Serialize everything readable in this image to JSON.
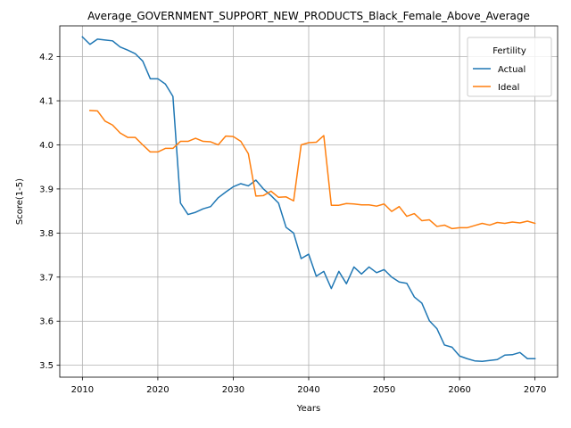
{
  "chart_data": {
    "type": "line",
    "title": "Average_GOVERNMENT_SUPPORT_NEW_PRODUCTS_Black_Female_Above_Average",
    "xlabel": "Years",
    "ylabel": "Score(1-5)",
    "xlim": [
      2007,
      2073
    ],
    "ylim": [
      3.473,
      4.27
    ],
    "xticks": [
      2010,
      2020,
      2030,
      2040,
      2050,
      2060,
      2070
    ],
    "yticks": [
      3.5,
      3.6,
      3.7,
      3.8,
      3.9,
      4.0,
      4.1,
      4.2
    ],
    "ytick_labels": [
      "3.5",
      "3.6",
      "3.7",
      "3.8",
      "3.9",
      "4.0",
      "4.1",
      "4.2"
    ],
    "grid": true,
    "legend": {
      "title": "Fertility",
      "position": "top-right"
    },
    "series": [
      {
        "name": "Actual",
        "color": "#1f77b4",
        "x": [
          2010,
          2011,
          2012,
          2013,
          2014,
          2015,
          2016,
          2017,
          2018,
          2019,
          2020,
          2021,
          2022,
          2023,
          2024,
          2025,
          2026,
          2027,
          2028,
          2029,
          2030,
          2031,
          2032,
          2033,
          2034,
          2035,
          2036,
          2037,
          2038,
          2039,
          2040,
          2041,
          2042,
          2043,
          2044,
          2045,
          2046,
          2047,
          2048,
          2049,
          2050,
          2051,
          2052,
          2053,
          2054,
          2055,
          2056,
          2057,
          2058,
          2059,
          2060,
          2061,
          2062,
          2063,
          2064,
          2065,
          2066,
          2067,
          2068,
          2069,
          2070
        ],
        "y": [
          4.245,
          4.228,
          4.24,
          4.238,
          4.236,
          4.222,
          4.215,
          4.207,
          4.19,
          4.15,
          4.15,
          4.138,
          4.11,
          3.868,
          3.842,
          3.847,
          3.855,
          3.86,
          3.88,
          3.893,
          3.905,
          3.912,
          3.907,
          3.92,
          3.9,
          3.885,
          3.868,
          3.813,
          3.8,
          3.742,
          3.752,
          3.702,
          3.713,
          3.674,
          3.713,
          3.685,
          3.723,
          3.707,
          3.723,
          3.71,
          3.717,
          3.7,
          3.689,
          3.686,
          3.655,
          3.641,
          3.601,
          3.583,
          3.546,
          3.541,
          3.521,
          3.515,
          3.51,
          3.509,
          3.511,
          3.513,
          3.523,
          3.524,
          3.529,
          3.515,
          3.515
        ]
      },
      {
        "name": "Ideal",
        "color": "#ff7f0e",
        "x": [
          2011,
          2012,
          2013,
          2014,
          2015,
          2016,
          2017,
          2018,
          2019,
          2020,
          2021,
          2022,
          2023,
          2024,
          2025,
          2026,
          2027,
          2028,
          2029,
          2030,
          2031,
          2032,
          2033,
          2034,
          2035,
          2036,
          2037,
          2038,
          2039,
          2040,
          2041,
          2042,
          2043,
          2044,
          2045,
          2046,
          2047,
          2048,
          2049,
          2050,
          2051,
          2052,
          2053,
          2054,
          2055,
          2056,
          2057,
          2058,
          2059,
          2060,
          2061,
          2062,
          2063,
          2064,
          2065,
          2066,
          2067,
          2068,
          2069,
          2070
        ],
        "y": [
          4.078,
          4.077,
          4.054,
          4.045,
          4.027,
          4.017,
          4.017,
          4.0,
          3.984,
          3.984,
          3.992,
          3.992,
          4.008,
          4.008,
          4.015,
          4.008,
          4.007,
          4.0,
          4.02,
          4.019,
          4.008,
          3.98,
          3.884,
          3.885,
          3.895,
          3.881,
          3.882,
          3.873,
          4.0,
          4.005,
          4.006,
          4.021,
          3.863,
          3.863,
          3.867,
          3.866,
          3.864,
          3.864,
          3.861,
          3.866,
          3.849,
          3.86,
          3.838,
          3.844,
          3.828,
          3.83,
          3.815,
          3.818,
          3.81,
          3.812,
          3.812,
          3.817,
          3.822,
          3.818,
          3.824,
          3.822,
          3.825,
          3.823,
          3.827,
          3.822
        ]
      }
    ]
  }
}
